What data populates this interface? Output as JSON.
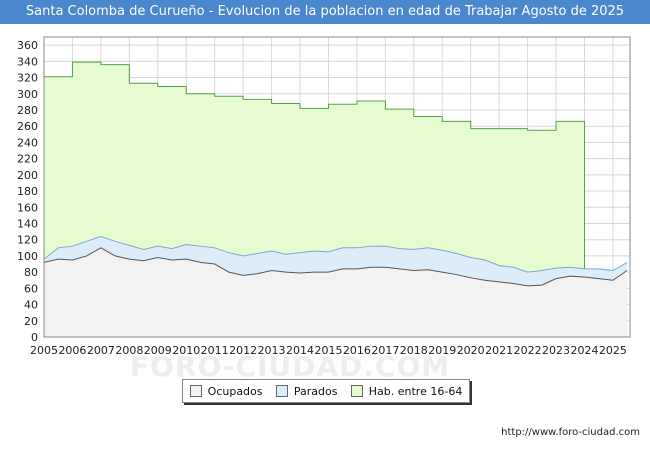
{
  "title": "Santa Colomba de Curueño - Evolucion de la poblacion en edad de Trabajar Agosto de 2025",
  "footer": "http://www.foro-ciudad.com",
  "watermark": "FORO-CIUDAD.COM",
  "colors": {
    "title_bg": "#4a87cc",
    "hab_fill": "#e6fbd0",
    "hab_line": "#56a04a",
    "parados_fill": "#dcecf9",
    "parados_line": "#7ba6cf",
    "ocupados_fill": "#f2f2f2",
    "ocupados_line": "#555555"
  },
  "chart_data": {
    "type": "area",
    "xlim": [
      2005,
      2025.6
    ],
    "ylim": [
      0,
      370
    ],
    "x_ticks": [
      "2005",
      "2006",
      "2007",
      "2008",
      "2009",
      "2010",
      "2011",
      "2012",
      "2013",
      "2014",
      "2015",
      "2016",
      "2017",
      "2018",
      "2019",
      "2020",
      "2021",
      "2022",
      "2023",
      "2024",
      "2025"
    ],
    "y_ticks": [
      0,
      20,
      40,
      60,
      80,
      100,
      120,
      140,
      160,
      180,
      200,
      220,
      240,
      260,
      280,
      300,
      320,
      340,
      360
    ],
    "grid": true,
    "legend_position": "bottom",
    "series": [
      {
        "name": "Hab. entre 16-64",
        "x": [
          2005,
          2006,
          2007,
          2008,
          2009,
          2010,
          2011,
          2012,
          2013,
          2014,
          2015,
          2016,
          2017,
          2018,
          2019,
          2020,
          2021,
          2022,
          2023
        ],
        "values": [
          321,
          339,
          336,
          313,
          309,
          300,
          297,
          293,
          288,
          282,
          287,
          291,
          281,
          272,
          266,
          257,
          257,
          255,
          266
        ]
      },
      {
        "name": "Parados",
        "x": [
          2005,
          2005.5,
          2006,
          2006.5,
          2007,
          2007.5,
          2008,
          2008.5,
          2009,
          2009.5,
          2010,
          2010.5,
          2011,
          2011.5,
          2012,
          2012.5,
          2013,
          2013.5,
          2014,
          2014.5,
          2015,
          2015.5,
          2016,
          2016.5,
          2017,
          2017.5,
          2018,
          2018.5,
          2019,
          2019.5,
          2020,
          2020.5,
          2021,
          2021.5,
          2022,
          2022.5,
          2023,
          2023.5,
          2024,
          2024.5,
          2025,
          2025.5
        ],
        "values": [
          96,
          110,
          112,
          118,
          124,
          118,
          113,
          108,
          112,
          109,
          114,
          112,
          110,
          104,
          100,
          103,
          106,
          102,
          104,
          106,
          105,
          110,
          110,
          112,
          112,
          109,
          108,
          110,
          107,
          103,
          98,
          95,
          88,
          86,
          80,
          82,
          85,
          86,
          84,
          84,
          82,
          92
        ]
      },
      {
        "name": "Ocupados",
        "x": [
          2005,
          2005.5,
          2006,
          2006.5,
          2007,
          2007.5,
          2008,
          2008.5,
          2009,
          2009.5,
          2010,
          2010.5,
          2011,
          2011.5,
          2012,
          2012.5,
          2013,
          2013.5,
          2014,
          2014.5,
          2015,
          2015.5,
          2016,
          2016.5,
          2017,
          2017.5,
          2018,
          2018.5,
          2019,
          2019.5,
          2020,
          2020.5,
          2021,
          2021.5,
          2022,
          2022.5,
          2023,
          2023.5,
          2024,
          2024.5,
          2025,
          2025.5
        ],
        "values": [
          92,
          96,
          95,
          100,
          110,
          100,
          96,
          94,
          98,
          95,
          96,
          92,
          90,
          80,
          76,
          78,
          82,
          80,
          79,
          80,
          80,
          84,
          84,
          86,
          86,
          84,
          82,
          83,
          80,
          77,
          73,
          70,
          68,
          66,
          63,
          64,
          72,
          75,
          74,
          72,
          70,
          82
        ]
      }
    ]
  }
}
